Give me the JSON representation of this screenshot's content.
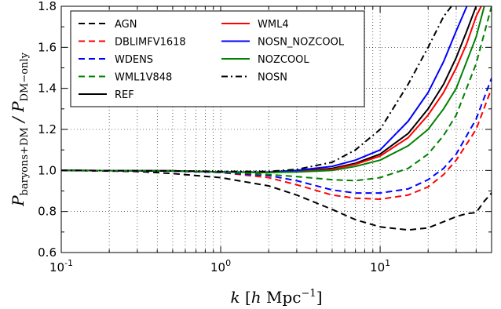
{
  "chart_data": {
    "type": "line",
    "xscale": "log",
    "xlim": [
      0.1,
      50
    ],
    "ylim": [
      0.6,
      1.8
    ],
    "grid": true,
    "legend_position": "top-left",
    "xlabel": "k [h Mpc^-1]",
    "ylabel": "P_baryons+DM / P_DM-only",
    "x_ticks": [
      {
        "value": 0.1,
        "base": "10",
        "exp": "-1"
      },
      {
        "value": 1,
        "base": "10",
        "exp": "0"
      },
      {
        "value": 10,
        "base": "10",
        "exp": "1"
      }
    ],
    "y_ticks": [
      "0.6",
      "0.8",
      "1.0",
      "1.2",
      "1.4",
      "1.6",
      "1.8"
    ],
    "legend_columns": [
      [
        "AGN",
        "DBLIMFV1618",
        "WDENS",
        "WML1V848",
        "REF"
      ],
      [
        "WML4",
        "NOSN_NOZCOOL",
        "NOZCOOL",
        "NOSN"
      ]
    ],
    "series": [
      {
        "name": "AGN",
        "color": "#000000",
        "dash": "8,5",
        "x": [
          0.1,
          0.3,
          0.5,
          1,
          2,
          3,
          5,
          7,
          10,
          15,
          20,
          25,
          30,
          35,
          40,
          45,
          50
        ],
        "y": [
          1.0,
          0.995,
          0.985,
          0.965,
          0.925,
          0.88,
          0.81,
          0.76,
          0.725,
          0.71,
          0.72,
          0.75,
          0.775,
          0.79,
          0.795,
          0.85,
          0.89
        ]
      },
      {
        "name": "DBLIMFV1618",
        "color": "#ff0000",
        "dash": "8,5",
        "x": [
          0.1,
          0.5,
          1,
          2,
          3,
          5,
          7,
          10,
          15,
          20,
          25,
          30,
          40,
          50
        ],
        "y": [
          1.0,
          0.997,
          0.99,
          0.965,
          0.93,
          0.88,
          0.865,
          0.86,
          0.88,
          0.92,
          0.98,
          1.05,
          1.2,
          1.4
        ]
      },
      {
        "name": "WDENS",
        "color": "#0000ff",
        "dash": "8,5",
        "x": [
          0.1,
          0.5,
          1,
          2,
          3,
          5,
          7,
          10,
          15,
          20,
          25,
          30,
          40,
          50
        ],
        "y": [
          1.0,
          0.997,
          0.99,
          0.975,
          0.95,
          0.905,
          0.89,
          0.89,
          0.91,
          0.955,
          1.01,
          1.08,
          1.25,
          1.45
        ]
      },
      {
        "name": "WML1V848",
        "color": "#008000",
        "dash": "8,5",
        "x": [
          0.1,
          0.5,
          1,
          2,
          3,
          5,
          7,
          10,
          15,
          20,
          25,
          30,
          40,
          50
        ],
        "y": [
          1.0,
          0.998,
          0.993,
          0.98,
          0.97,
          0.955,
          0.95,
          0.965,
          1.01,
          1.08,
          1.17,
          1.27,
          1.52,
          1.8
        ]
      },
      {
        "name": "REF",
        "color": "#000000",
        "dash": "",
        "x": [
          0.1,
          0.5,
          1,
          2,
          3,
          5,
          7,
          10,
          15,
          20,
          25,
          30,
          35,
          40
        ],
        "y": [
          1.0,
          0.998,
          0.993,
          0.99,
          0.995,
          1.01,
          1.035,
          1.08,
          1.18,
          1.3,
          1.42,
          1.55,
          1.68,
          1.8
        ]
      },
      {
        "name": "WML4",
        "color": "#ff0000",
        "dash": "",
        "x": [
          0.1,
          0.5,
          1,
          2,
          3,
          5,
          7,
          10,
          15,
          20,
          25,
          30,
          35,
          40,
          43
        ],
        "y": [
          1.0,
          0.998,
          0.993,
          0.99,
          0.994,
          1.005,
          1.03,
          1.07,
          1.16,
          1.27,
          1.38,
          1.5,
          1.62,
          1.75,
          1.8
        ]
      },
      {
        "name": "NOSN_NOZCOOL",
        "color": "#0000ff",
        "dash": "",
        "x": [
          0.1,
          0.5,
          1,
          2,
          3,
          5,
          7,
          10,
          15,
          20,
          25,
          30,
          35
        ],
        "y": [
          1.0,
          0.998,
          0.993,
          0.992,
          1.0,
          1.02,
          1.05,
          1.1,
          1.24,
          1.38,
          1.53,
          1.68,
          1.8
        ]
      },
      {
        "name": "NOZCOOL",
        "color": "#008000",
        "dash": "",
        "x": [
          0.1,
          0.5,
          1,
          2,
          3,
          5,
          7,
          10,
          15,
          20,
          25,
          30,
          40,
          45
        ],
        "y": [
          1.0,
          0.998,
          0.993,
          0.99,
          0.993,
          1.0,
          1.02,
          1.05,
          1.12,
          1.2,
          1.3,
          1.4,
          1.65,
          1.8
        ]
      },
      {
        "name": "NOSN",
        "color": "#000000",
        "dash": "8,4,2,4",
        "x": [
          0.1,
          0.5,
          1,
          2,
          3,
          5,
          7,
          10,
          15,
          20,
          25,
          28
        ],
        "y": [
          1.0,
          0.998,
          0.995,
          0.995,
          1.005,
          1.04,
          1.1,
          1.2,
          1.42,
          1.6,
          1.75,
          1.8
        ]
      }
    ]
  }
}
